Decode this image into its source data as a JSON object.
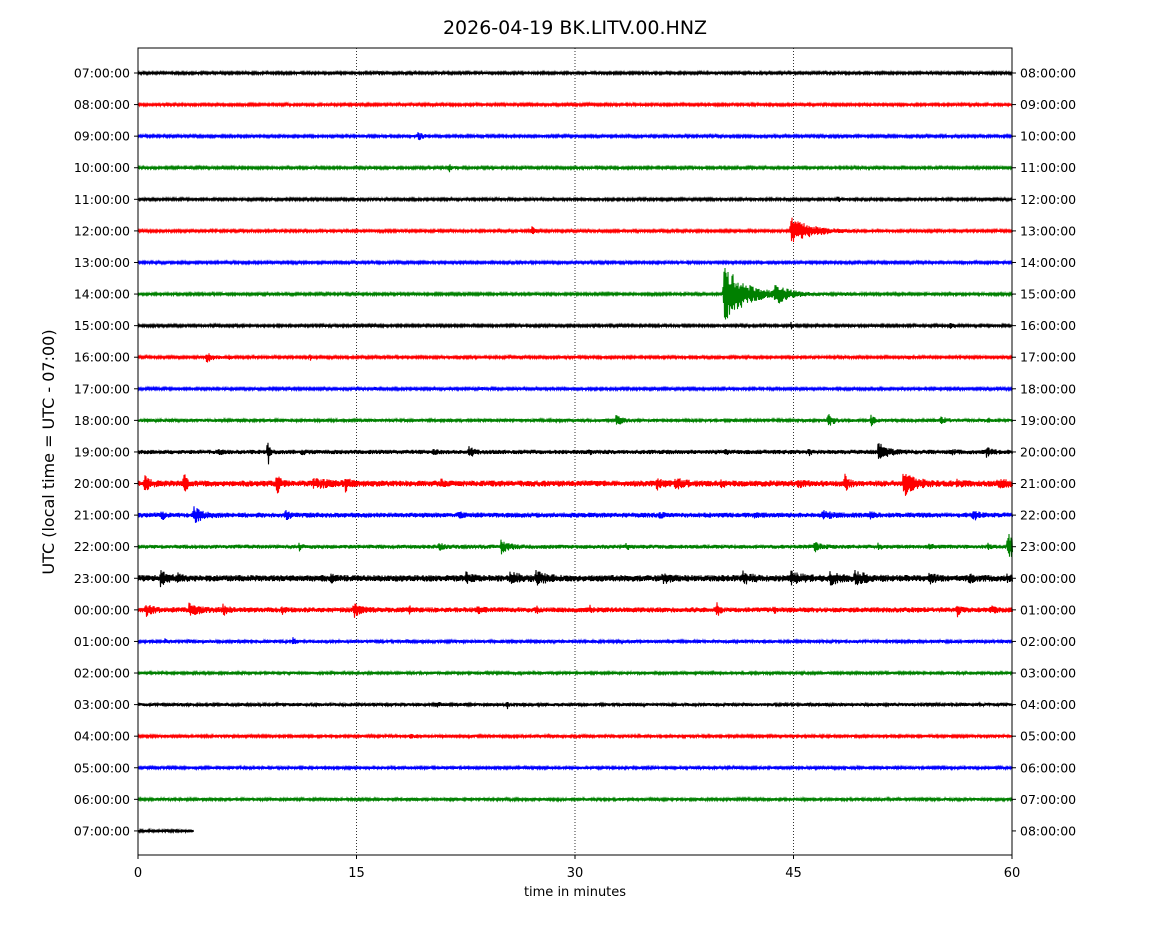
{
  "chart_data": {
    "type": "line",
    "title": "2026-04-19 BK.LITV.00.HNZ",
    "xlabel": "time in minutes",
    "ylabel": "UTC (local time = UTC - 07:00)",
    "xlim": [
      0,
      60
    ],
    "xticks": [
      "0",
      "15",
      "30",
      "45",
      "60"
    ],
    "grid": "vertical dotted lines at 15, 30, 45",
    "trace_colors": [
      "#000000",
      "#ff0000",
      "#0000ff",
      "#008000"
    ],
    "left_labels": [
      "07:00:00",
      "08:00:00",
      "09:00:00",
      "10:00:00",
      "11:00:00",
      "12:00:00",
      "13:00:00",
      "14:00:00",
      "15:00:00",
      "16:00:00",
      "17:00:00",
      "18:00:00",
      "19:00:00",
      "20:00:00",
      "21:00:00",
      "22:00:00",
      "23:00:00",
      "00:00:00",
      "01:00:00",
      "02:00:00",
      "03:00:00",
      "04:00:00",
      "05:00:00",
      "06:00:00",
      "07:00:00"
    ],
    "right_labels": [
      "08:00:00",
      "09:00:00",
      "10:00:00",
      "11:00:00",
      "12:00:00",
      "13:00:00",
      "14:00:00",
      "15:00:00",
      "16:00:00",
      "17:00:00",
      "18:00:00",
      "19:00:00",
      "20:00:00",
      "21:00:00",
      "22:00:00",
      "23:00:00",
      "00:00:00",
      "01:00:00",
      "02:00:00",
      "03:00:00",
      "04:00:00",
      "05:00:00",
      "06:00:00",
      "07:00:00",
      "08:00:00"
    ],
    "rows": [
      {
        "noise": 1.2,
        "end": 60,
        "events": [
          [
            16.5,
            2,
            0.3
          ]
        ]
      },
      {
        "noise": 1.2,
        "end": 60,
        "events": []
      },
      {
        "noise": 1.2,
        "end": 60,
        "events": [
          [
            19.2,
            4,
            0.6
          ]
        ]
      },
      {
        "noise": 1.2,
        "end": 60,
        "events": [
          [
            21.3,
            5,
            0.3
          ]
        ]
      },
      {
        "noise": 1.2,
        "end": 60,
        "events": [
          [
            48.0,
            5,
            0.2
          ]
        ]
      },
      {
        "noise": 1.2,
        "end": 60,
        "events": [
          [
            27.0,
            6,
            0.3
          ],
          [
            44.8,
            13,
            2.5
          ]
        ]
      },
      {
        "noise": 1.2,
        "end": 60,
        "events": []
      },
      {
        "noise": 1.2,
        "end": 60,
        "events": [
          [
            40.2,
            30,
            2.5
          ],
          [
            43.7,
            9,
            1.5
          ],
          [
            48.5,
            2,
            0.6
          ]
        ]
      },
      {
        "noise": 1.2,
        "end": 60,
        "events": [
          [
            44.8,
            4,
            0.2
          ],
          [
            55.7,
            4,
            0.4
          ]
        ]
      },
      {
        "noise": 1.2,
        "end": 60,
        "events": [
          [
            4.6,
            6,
            0.8
          ],
          [
            6.2,
            3,
            0.2
          ],
          [
            11.8,
            3,
            0.2
          ],
          [
            52.8,
            2,
            0.3
          ]
        ]
      },
      {
        "noise": 1.2,
        "end": 60,
        "events": [
          [
            16.3,
            2,
            0.2
          ],
          [
            23.5,
            2,
            0.2
          ]
        ]
      },
      {
        "noise": 1.5,
        "end": 60,
        "events": [
          [
            32.8,
            6,
            0.6
          ],
          [
            47.3,
            7,
            0.7
          ],
          [
            50.3,
            5,
            0.5
          ],
          [
            55.0,
            3,
            1.0
          ],
          [
            58.3,
            3,
            0.3
          ]
        ]
      },
      {
        "noise": 2.2,
        "end": 60,
        "events": [
          [
            5.5,
            3,
            0.3
          ],
          [
            8.9,
            20,
            0.15
          ],
          [
            11.2,
            3,
            0.3
          ],
          [
            20.2,
            4,
            0.3
          ],
          [
            22.7,
            7,
            0.4
          ],
          [
            31.0,
            2,
            0.2
          ],
          [
            40.3,
            3,
            0.2
          ],
          [
            46.0,
            3,
            0.3
          ],
          [
            50.8,
            9,
            1.0
          ],
          [
            55.8,
            3,
            0.4
          ],
          [
            58.2,
            4,
            0.6
          ]
        ]
      },
      {
        "noise": 3.0,
        "end": 60,
        "events": [
          [
            0.4,
            7,
            0.6
          ],
          [
            3.1,
            16,
            0.3
          ],
          [
            9.5,
            16,
            0.3
          ],
          [
            12.0,
            4,
            2.0
          ],
          [
            14.2,
            7,
            0.4
          ],
          [
            20.8,
            3,
            0.3
          ],
          [
            35.5,
            6,
            0.6
          ],
          [
            36.8,
            5,
            1.0
          ],
          [
            40.0,
            3,
            0.4
          ],
          [
            45.2,
            3,
            0.7
          ],
          [
            48.5,
            8,
            0.4
          ],
          [
            52.5,
            12,
            1.3
          ],
          [
            56.2,
            3,
            0.4
          ],
          [
            59.0,
            4,
            1.0
          ]
        ]
      },
      {
        "noise": 2.5,
        "end": 60,
        "events": [
          [
            1.6,
            5,
            0.3
          ],
          [
            3.8,
            8,
            0.9
          ],
          [
            10.1,
            9,
            0.3
          ],
          [
            22.0,
            3,
            0.6
          ],
          [
            35.8,
            3,
            0.3
          ],
          [
            42.3,
            4,
            0.3
          ],
          [
            47.0,
            3,
            1.0
          ],
          [
            50.2,
            3,
            0.5
          ],
          [
            57.3,
            5,
            0.5
          ]
        ]
      },
      {
        "noise": 2.0,
        "end": 60,
        "events": [
          [
            11.0,
            4,
            0.3
          ],
          [
            20.6,
            4,
            0.5
          ],
          [
            24.9,
            6,
            1.0
          ],
          [
            33.5,
            3,
            0.3
          ],
          [
            46.4,
            5,
            0.6
          ],
          [
            50.8,
            3,
            0.3
          ],
          [
            54.3,
            3,
            0.4
          ],
          [
            58.3,
            3,
            0.3
          ],
          [
            59.7,
            14,
            0.8
          ]
        ]
      },
      {
        "noise": 3.2,
        "end": 60,
        "events": [
          [
            1.5,
            6,
            1.0
          ],
          [
            2.6,
            4,
            0.4
          ],
          [
            13.2,
            4,
            0.3
          ],
          [
            22.5,
            4,
            0.7
          ],
          [
            25.5,
            5,
            1.2
          ],
          [
            27.3,
            6,
            1.0
          ],
          [
            36.0,
            4,
            0.8
          ],
          [
            41.5,
            5,
            1.0
          ],
          [
            44.8,
            5,
            1.3
          ],
          [
            47.5,
            5,
            1.2
          ],
          [
            49.2,
            6,
            1.2
          ],
          [
            54.3,
            4,
            0.7
          ],
          [
            57.0,
            4,
            0.6
          ],
          [
            59.6,
            3,
            0.4
          ]
        ]
      },
      {
        "noise": 2.6,
        "end": 60,
        "events": [
          [
            0.5,
            5,
            0.8
          ],
          [
            3.5,
            5,
            1.2
          ],
          [
            5.8,
            5,
            0.5
          ],
          [
            9.8,
            4,
            0.4
          ],
          [
            14.8,
            6,
            0.8
          ],
          [
            18.6,
            4,
            0.3
          ],
          [
            23.3,
            3,
            0.4
          ],
          [
            27.3,
            4,
            0.2
          ],
          [
            31.0,
            3,
            0.3
          ],
          [
            39.7,
            8,
            0.3
          ],
          [
            43.6,
            4,
            0.2
          ],
          [
            56.2,
            6,
            0.3
          ],
          [
            58.5,
            3,
            0.5
          ]
        ]
      },
      {
        "noise": 1.5,
        "end": 60,
        "events": [
          [
            1.8,
            3,
            0.3
          ],
          [
            3.5,
            2,
            0.2
          ],
          [
            10.6,
            4,
            0.3
          ],
          [
            18.5,
            2,
            0.3
          ]
        ]
      },
      {
        "noise": 1.5,
        "end": 60,
        "events": []
      },
      {
        "noise": 1.6,
        "end": 60,
        "events": [
          [
            20.4,
            4,
            0.4
          ],
          [
            25.3,
            4,
            0.2
          ]
        ]
      },
      {
        "noise": 1.4,
        "end": 60,
        "events": [
          [
            18.6,
            2,
            0.6
          ]
        ]
      },
      {
        "noise": 1.4,
        "end": 60,
        "events": []
      },
      {
        "noise": 1.4,
        "end": 60,
        "events": []
      },
      {
        "noise": 1.6,
        "end": 3.8,
        "events": []
      }
    ]
  }
}
